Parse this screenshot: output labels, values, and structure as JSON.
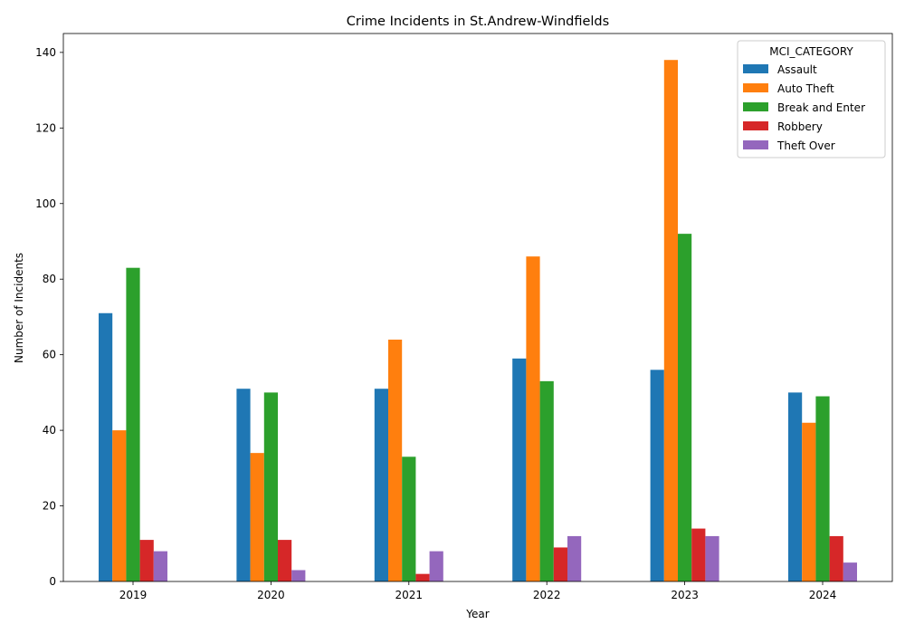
{
  "chart_data": {
    "type": "bar",
    "title": "Crime Incidents in St.Andrew-Windfields",
    "xlabel": "Year",
    "ylabel": "Number of Incidents",
    "categories": [
      "2019",
      "2020",
      "2021",
      "2022",
      "2023",
      "2024"
    ],
    "ylim": [
      0,
      145
    ],
    "yticks": [
      0,
      20,
      40,
      60,
      80,
      100,
      120,
      140
    ],
    "legend_title": "MCI_CATEGORY",
    "legend_position": "top-right",
    "series": [
      {
        "name": "Assault",
        "color": "#1f77b4",
        "values": [
          71,
          51,
          51,
          59,
          56,
          50
        ]
      },
      {
        "name": "Auto Theft",
        "color": "#ff7f0e",
        "values": [
          40,
          34,
          64,
          86,
          138,
          42
        ]
      },
      {
        "name": "Break and Enter",
        "color": "#2ca02c",
        "values": [
          83,
          50,
          33,
          53,
          92,
          49
        ]
      },
      {
        "name": "Robbery",
        "color": "#d62728",
        "values": [
          11,
          11,
          2,
          9,
          14,
          12
        ]
      },
      {
        "name": "Theft Over",
        "color": "#9467bd",
        "values": [
          8,
          3,
          8,
          12,
          12,
          5
        ]
      }
    ]
  }
}
